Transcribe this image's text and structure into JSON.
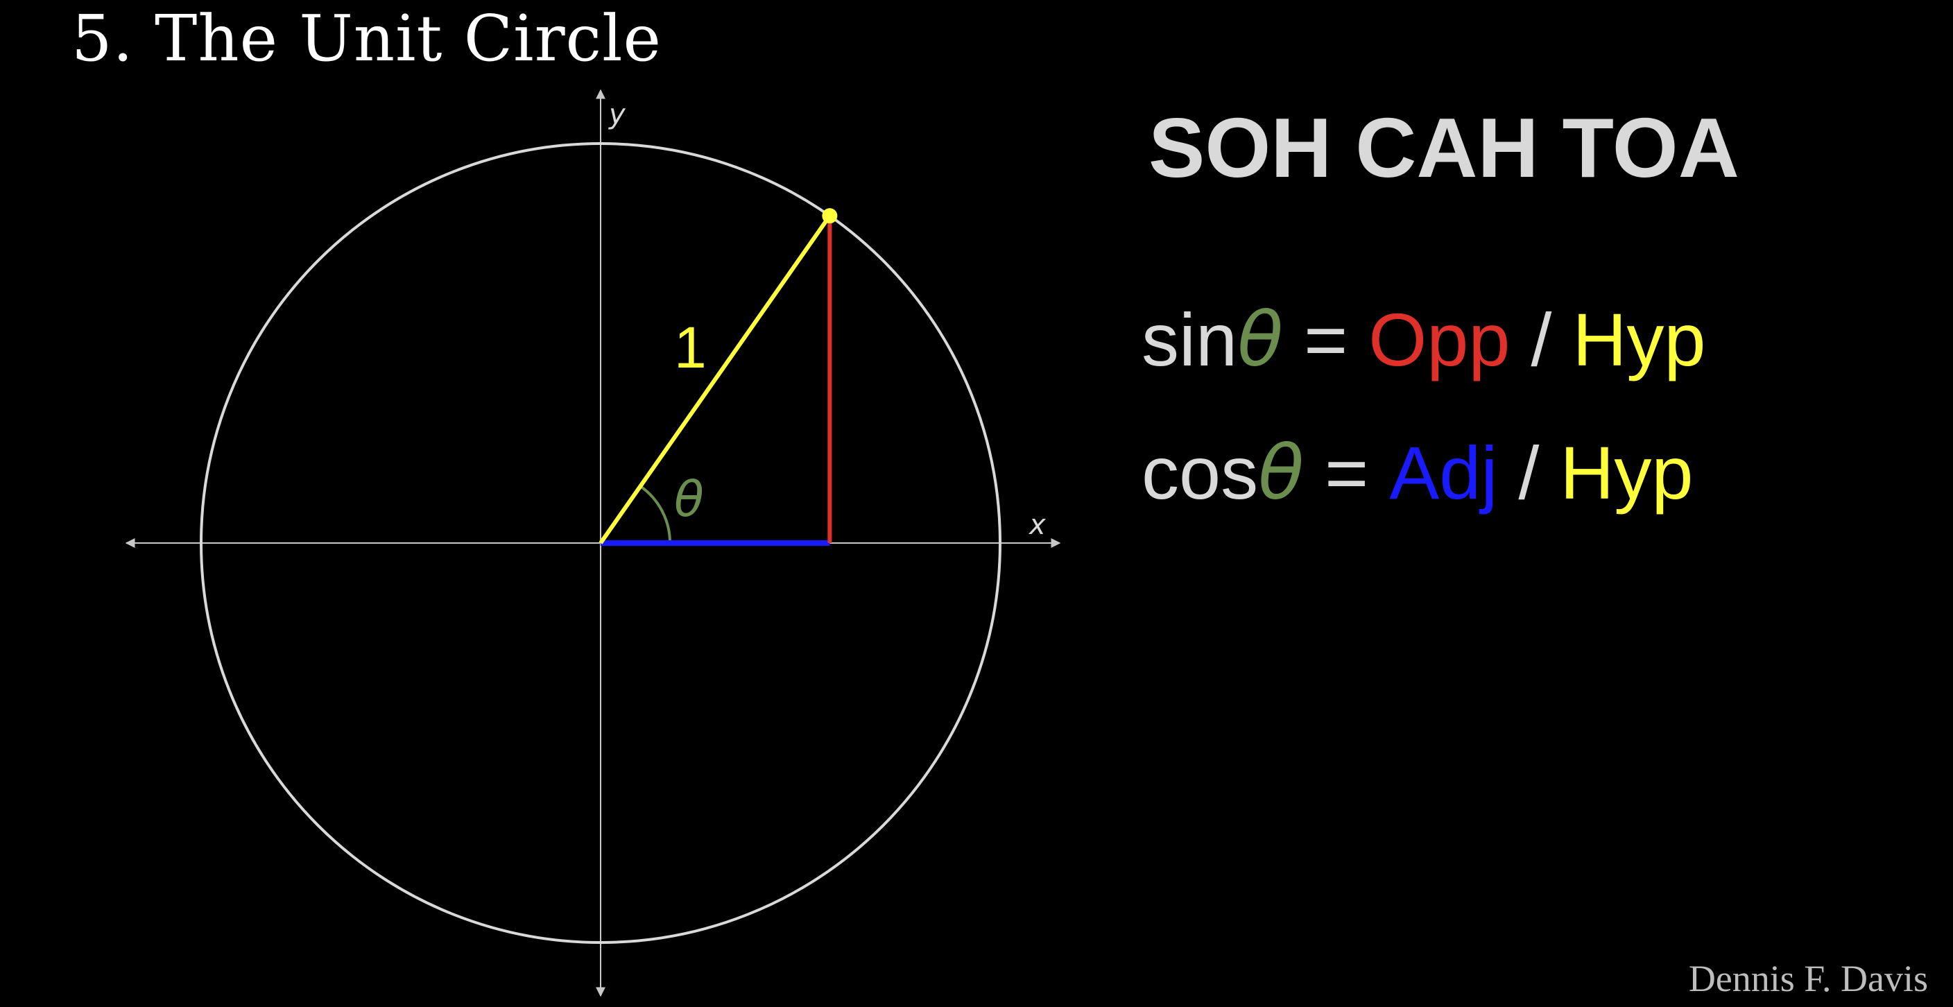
{
  "heading": "5. The Unit Circle",
  "diagram": {
    "axis_x_label": "x",
    "axis_y_label": "y",
    "hypotenuse_label": "1",
    "angle_label": "θ",
    "angle_degrees": 55,
    "colors": {
      "background": "#000000",
      "circle": "#d9d9d9",
      "axes": "#c8c8c8",
      "hypotenuse": "#ffff3c",
      "opposite": "#e0302a",
      "adjacent": "#1a1aff",
      "angle": "#6b8e4e"
    }
  },
  "mnemonic": "SOH CAH TOA",
  "formulas": {
    "sin": {
      "func": "sin",
      "theta": "θ",
      "equals": "=",
      "num": "Opp",
      "slash": "/",
      "den": "Hyp"
    },
    "cos": {
      "func": "cos",
      "theta": "θ",
      "equals": "=",
      "num": "Adj",
      "slash": "/",
      "den": "Hyp"
    }
  },
  "formula_colors": {
    "text": "#d9d9d9",
    "theta": "#6b8e4e",
    "opp": "#e0302a",
    "adj": "#1a1aff",
    "hyp": "#ffff3c"
  },
  "credit": "Dennis F. Davis"
}
